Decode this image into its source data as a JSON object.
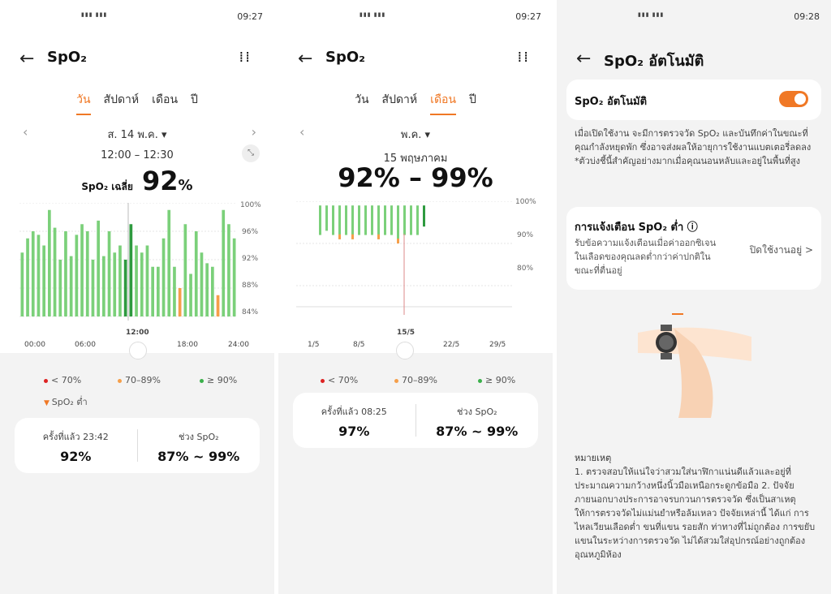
{
  "colors": {
    "accent": "#f07825",
    "green": "#7bd07a",
    "dark_green": "#2e9a3f",
    "orange": "#f59f4a",
    "red": "#d22"
  },
  "p1": {
    "time": "09:27",
    "title": "SpO₂",
    "tabs": [
      "วัน",
      "สัปดาห์",
      "เดือน",
      "ปี"
    ],
    "active_tab": 0,
    "date": "ส. 14 พ.ค. ▾",
    "range": "12:00 – 12:30",
    "avg_label": "SpO₂ เฉลี่ย",
    "avg_value": "92",
    "avg_unit": "%",
    "yticks": [
      "100%",
      "96%",
      "92%",
      "88%",
      "84%"
    ],
    "xticks": [
      "00:00",
      "06:00",
      "12:00",
      "18:00",
      "24:00"
    ],
    "legend": [
      "< 70%",
      "70–89%",
      "≥ 90%",
      "SpO₂ ต่ำ"
    ],
    "last_label": "ครั้งที่แล้ว 23:42",
    "last_value": "92%",
    "range_label": "ช่วง SpO₂",
    "range_value": "87% ~ 99%"
  },
  "p2": {
    "time": "09:27",
    "title": "SpO₂",
    "tabs": [
      "วัน",
      "สัปดาห์",
      "เดือน",
      "ปี"
    ],
    "active_tab": 2,
    "date": "พ.ค. ▾",
    "sub": "15 พฤษภาคม",
    "value": "92% – 99%",
    "yticks": [
      "100%",
      "90%",
      "80%"
    ],
    "xticks": [
      "1/5",
      "8/5",
      "15/5",
      "22/5",
      "29/5"
    ],
    "legend": [
      "< 70%",
      "70–89%",
      "≥ 90%"
    ],
    "last_label": "ครั้งที่แล้ว 08:25",
    "last_value": "97%",
    "range_label": "ช่วง SpO₂",
    "range_value": "87% ~ 99%"
  },
  "p3": {
    "time": "09:28",
    "title": "SpO₂ อัตโนมัติ",
    "toggle_label": "SpO₂ อัตโนมัติ",
    "desc": "เมื่อเปิดใช้งาน จะมีการตรวจวัด SpO₂ และบันทึกค่าในขณะที่คุณกำลังหยุดพัก ซึ่งอาจส่งผลให้อายุการใช้งานแบตเตอรี่ลดลง *ตัวบ่งชี้นี้สำคัญอย่างมากเมื่อคุณนอนหลับและอยู่ในพื้นที่สูง",
    "alert_title": "การแจ้งเตือน SpO₂ ต่ำ ⓘ",
    "alert_desc": "รับข้อความแจ้งเตือนเมื่อค่าออกซิเจนในเลือดของคุณลดต่ำกว่าค่าปกติในขณะที่ตื่นอยู่",
    "alert_state": "ปิดใช้งานอยู่ >",
    "note_title": "หมายเหตุ",
    "note": "1. ตรวจสอบให้แน่ใจว่าสวมใส่นาฬิกาแน่นดีแล้วและอยู่ที่ประมาณความกว้างหนึ่งนิ้วมือเหนือกระดูกข้อมือ 2. ปัจจัยภายนอกบางประการอาจรบกวนการตรวจวัด ซึ่งเป็นสาเหตุให้การตรวจวัดไม่แม่นยำหรือล้มเหลว ปัจจัยเหล่านี้ ได้แก่ การไหลเวียนเลือดต่ำ ขนที่แขน รอยสัก ท่าทางที่ไม่ถูกต้อง การขยับแขนในระหว่างการตรวจวัด ไม่ได้สวมใส่อุปกรณ์อย่างถูกต้อง อุณหภูมิห้อง"
  },
  "chart_data": [
    {
      "type": "bar",
      "title": "",
      "ylim": [
        84,
        100
      ],
      "yticks": [
        100,
        96,
        92,
        88,
        84
      ],
      "xticks": [
        "00:00",
        "06:00",
        "12:00",
        "18:00",
        "24:00"
      ],
      "series": [
        {
          "values": [
            93,
            95,
            96,
            95.5,
            94,
            99,
            96.5,
            92,
            96,
            92.5,
            95.5,
            97,
            96,
            92,
            97.5,
            92.5,
            96,
            93,
            94,
            92,
            97,
            94,
            93,
            94,
            91,
            91,
            95,
            99,
            91,
            88,
            97,
            90,
            96,
            93,
            91.5,
            91,
            87,
            99,
            97,
            95
          ]
        }
      ]
    },
    {
      "type": "bar",
      "title": "",
      "ylim": [
        75,
        100
      ],
      "yticks": [
        100,
        90,
        80
      ],
      "xticks": [
        "1/5",
        "8/5",
        "15/5",
        "22/5",
        "29/5"
      ],
      "series": [
        {
          "values": [
            99,
            99,
            99,
            99,
            99,
            99,
            99,
            99,
            99,
            99,
            99,
            99,
            99,
            99,
            99,
            99,
            99
          ]
        },
        {
          "values": [
            92,
            93,
            92,
            91,
            92,
            91,
            92,
            92,
            92,
            91,
            92,
            92,
            90,
            92,
            92,
            92,
            94
          ]
        }
      ]
    }
  ]
}
